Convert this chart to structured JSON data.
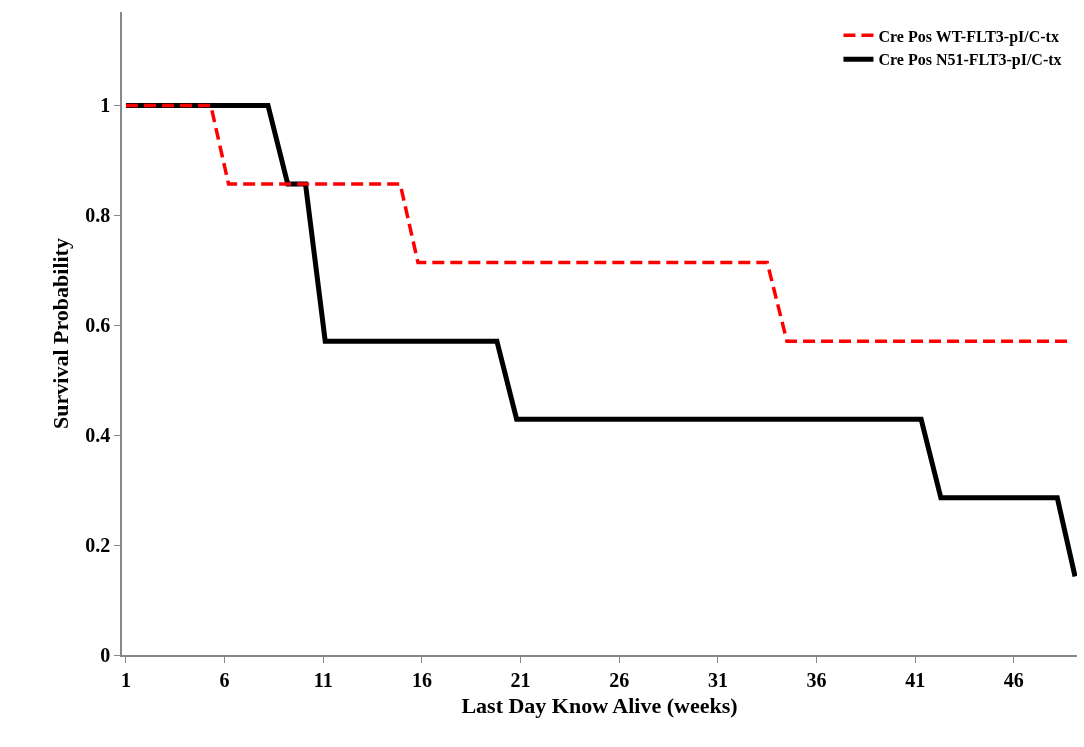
{
  "chart_data": {
    "type": "line",
    "xlabel": "Last Day Know Alive (weeks)",
    "ylabel": "Survival Probability",
    "xlim": [
      0.8,
      49.2
    ],
    "ylim": [
      0,
      1.17
    ],
    "xticks": [
      1,
      6,
      11,
      16,
      21,
      26,
      31,
      36,
      41,
      46
    ],
    "yticks": [
      0,
      0.2,
      0.4,
      0.6,
      0.8,
      1
    ],
    "grid": false,
    "legend": "top right",
    "marker": "none",
    "series": [
      {
        "name": "Cre Pos WT-FLT3-pI/C-tx",
        "color": "#ff0000",
        "line_style": "dashed",
        "x": [
          1,
          5.3,
          6.2,
          14.9,
          15.8,
          33.5,
          34.5,
          48.7
        ],
        "values": [
          1,
          1,
          0.857,
          0.857,
          0.714,
          0.714,
          0.571,
          0.571
        ]
      },
      {
        "name": "Cre Pos N51-FLT3-pI/C-tx",
        "color": "#000000",
        "line_style": "solid",
        "x": [
          1,
          8.2,
          9.2,
          10.1,
          11.1,
          19.8,
          20.8,
          41.3,
          42.3,
          48.2,
          49.1
        ],
        "values": [
          1,
          1,
          0.857,
          0.857,
          0.571,
          0.571,
          0.429,
          0.429,
          0.286,
          0.286,
          0.143
        ]
      }
    ]
  }
}
